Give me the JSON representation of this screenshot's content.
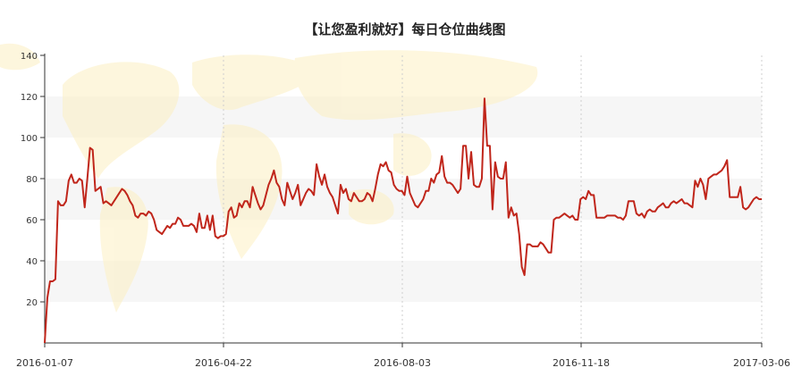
{
  "chart_data": {
    "type": "line",
    "title": "【让您盈利就好】每日仓位曲线图",
    "xlabel": "",
    "ylabel": "",
    "ylim": [
      0,
      140
    ],
    "yticks": [
      20,
      40,
      60,
      80,
      100,
      120,
      140
    ],
    "x_tick_labels": [
      "2016-01-07",
      "2016-04-22",
      "2016-08-03",
      "2016-11-18",
      "2017-03-06"
    ],
    "grid": "vertical dashed lines at x ticks, alternating horizontal bands",
    "line_color": "#c0261b",
    "series": [
      {
        "values": [
          0,
          22,
          30,
          30,
          31,
          69,
          67,
          67,
          69,
          79,
          82,
          78,
          78,
          80,
          79,
          66,
          80,
          95,
          94,
          74,
          75,
          76,
          68,
          69,
          68,
          67,
          69,
          71,
          73,
          75,
          74,
          72,
          69,
          67,
          62,
          61,
          63,
          63,
          62,
          64,
          63,
          60,
          55,
          54,
          53,
          55,
          57,
          56,
          58,
          58,
          61,
          60,
          57,
          57,
          57,
          58,
          57,
          54,
          63,
          56,
          56,
          62,
          55,
          62,
          52,
          51,
          52,
          52,
          53,
          64,
          66,
          61,
          62,
          68,
          66,
          69,
          69,
          66,
          76,
          72,
          68,
          65,
          67,
          72,
          77,
          80,
          84,
          78,
          76,
          70,
          67,
          78,
          74,
          70,
          73,
          77,
          67,
          70,
          73,
          75,
          74,
          72,
          87,
          81,
          77,
          82,
          76,
          73,
          71,
          67,
          63,
          77,
          73,
          75,
          70,
          69,
          73,
          71,
          69,
          69,
          70,
          73,
          72,
          69,
          75,
          82,
          87,
          86,
          88,
          84,
          83,
          77,
          75,
          74,
          74,
          72,
          81,
          73,
          70,
          67,
          66,
          68,
          70,
          74,
          74,
          80,
          78,
          82,
          83,
          91,
          81,
          78,
          78,
          77,
          75,
          73,
          75,
          96,
          96,
          80,
          93,
          77,
          76,
          76,
          80,
          119,
          96,
          96,
          65,
          88,
          81,
          80,
          80,
          88,
          61,
          66,
          62,
          63,
          53,
          37,
          33,
          48,
          48,
          47,
          47,
          47,
          49,
          48,
          46,
          44,
          44,
          60,
          61,
          61,
          62,
          63,
          62,
          61,
          62,
          60,
          60,
          70,
          71,
          70,
          74,
          72,
          72,
          61,
          61,
          61,
          61,
          62,
          62,
          62,
          62,
          61,
          61,
          60,
          62,
          69,
          69,
          69,
          63,
          62,
          63,
          61,
          64,
          65,
          64,
          64,
          66,
          67,
          68,
          66,
          66,
          68,
          69,
          68,
          69,
          70,
          68,
          68,
          67,
          66,
          79,
          76,
          80,
          77,
          70,
          80,
          81,
          82,
          82,
          83,
          84,
          86,
          89,
          71,
          71,
          71,
          71,
          76,
          66,
          65,
          66,
          68,
          70,
          71,
          70,
          70
        ]
      }
    ]
  }
}
